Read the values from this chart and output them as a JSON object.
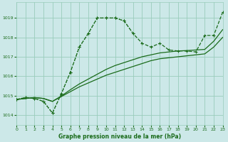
{
  "title": "Graphe pression niveau de la mer (hPa)",
  "bg_color": "#cce8e8",
  "grid_color": "#99ccbb",
  "line_color": "#1a6b1a",
  "xlim": [
    0,
    23
  ],
  "ylim": [
    1013.5,
    1019.8
  ],
  "yticks": [
    1014,
    1015,
    1016,
    1017,
    1018,
    1019
  ],
  "xticks": [
    0,
    1,
    2,
    3,
    4,
    5,
    6,
    7,
    8,
    9,
    10,
    11,
    12,
    13,
    14,
    15,
    16,
    17,
    18,
    19,
    20,
    21,
    22,
    23
  ],
  "solid1_x": [
    0,
    1,
    2,
    3,
    4,
    5,
    6,
    7,
    8,
    9,
    10,
    11,
    12,
    13,
    14,
    15,
    16,
    17,
    18,
    19,
    20,
    21,
    22,
    23
  ],
  "solid1_y": [
    1014.8,
    1014.85,
    1014.9,
    1014.85,
    1014.7,
    1014.95,
    1015.2,
    1015.45,
    1015.65,
    1015.85,
    1016.05,
    1016.2,
    1016.35,
    1016.5,
    1016.65,
    1016.8,
    1016.9,
    1016.95,
    1017.0,
    1017.05,
    1017.1,
    1017.15,
    1017.5,
    1018.0
  ],
  "solid2_x": [
    0,
    1,
    2,
    3,
    4,
    5,
    6,
    7,
    8,
    9,
    10,
    11,
    12,
    13,
    14,
    15,
    16,
    17,
    18,
    19,
    20,
    21,
    22,
    23
  ],
  "solid2_y": [
    1014.8,
    1014.85,
    1014.9,
    1014.85,
    1014.7,
    1014.98,
    1015.3,
    1015.6,
    1015.85,
    1016.1,
    1016.35,
    1016.55,
    1016.7,
    1016.85,
    1017.0,
    1017.1,
    1017.2,
    1017.25,
    1017.3,
    1017.32,
    1017.35,
    1017.38,
    1017.8,
    1018.4
  ],
  "dashed_x": [
    0,
    1,
    2,
    3,
    4,
    5,
    6,
    7,
    8,
    9,
    10,
    11,
    12,
    13,
    14,
    15,
    16,
    17,
    18,
    19,
    20,
    21,
    22,
    23
  ],
  "dashed_y": [
    1014.8,
    1014.9,
    1014.85,
    1014.7,
    1014.1,
    1015.1,
    1016.2,
    1017.5,
    1018.2,
    1019.0,
    1019.0,
    1019.0,
    1018.85,
    1018.2,
    1017.7,
    1017.5,
    1017.7,
    1017.35,
    1017.3,
    1017.3,
    1017.25,
    1018.1,
    1018.1,
    1019.3
  ],
  "dotted_x": [
    0,
    1,
    2,
    3,
    4,
    5,
    6,
    7,
    8,
    9,
    10,
    11,
    12,
    13
  ],
  "dotted_y": [
    1014.8,
    1014.9,
    1014.85,
    1014.7,
    1014.1,
    1015.1,
    1016.2,
    1017.5,
    1018.2,
    1019.0,
    1019.0,
    1019.0,
    1018.85,
    1018.2
  ]
}
